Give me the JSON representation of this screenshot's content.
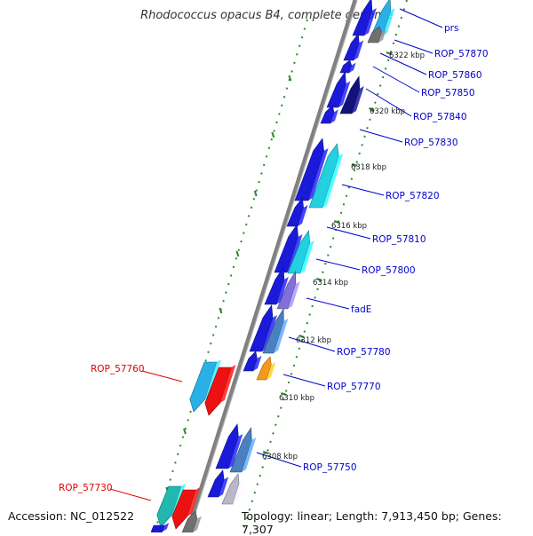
{
  "title": "Rhodococcus opacus B4, complete genome",
  "accession_text": "Accession: NC_012522",
  "summary_text": "Topology: linear; Length: 7,913,450 bp; Genes: 7,307",
  "colors": {
    "backbone": "#808080",
    "tick": "#2a8a2a",
    "forward_label": "#0000cc",
    "reverse_label": "#dd0000",
    "blue": "#1a1ad8",
    "navy": "#12127a",
    "cyan": "#22d0e0",
    "sky": "#2ab0e8",
    "steel": "#4a80c0",
    "lavender": "#8070d8",
    "orange": "#f39a1c",
    "red": "#ee1111",
    "teal": "#20b8b0",
    "gray": "#707070",
    "silver": "#b8b8c8"
  },
  "scale_labels": [
    "6322 kbp",
    "6320 kbp",
    "6318 kbp",
    "6316 kbp",
    "6314 kbp",
    "6312 kbp",
    "6310 kbp",
    "6308 kbp"
  ],
  "forward_labels": [
    "prs",
    "ROP_57870",
    "ROP_57860",
    "ROP_57850",
    "ROP_57840",
    "ROP_57830",
    "ROP_57820",
    "ROP_57810",
    "ROP_57800",
    "fadE",
    "ROP_57780",
    "ROP_57770",
    "ROP_57750"
  ],
  "reverse_labels": [
    "ROP_57760",
    "ROP_57730"
  ]
}
